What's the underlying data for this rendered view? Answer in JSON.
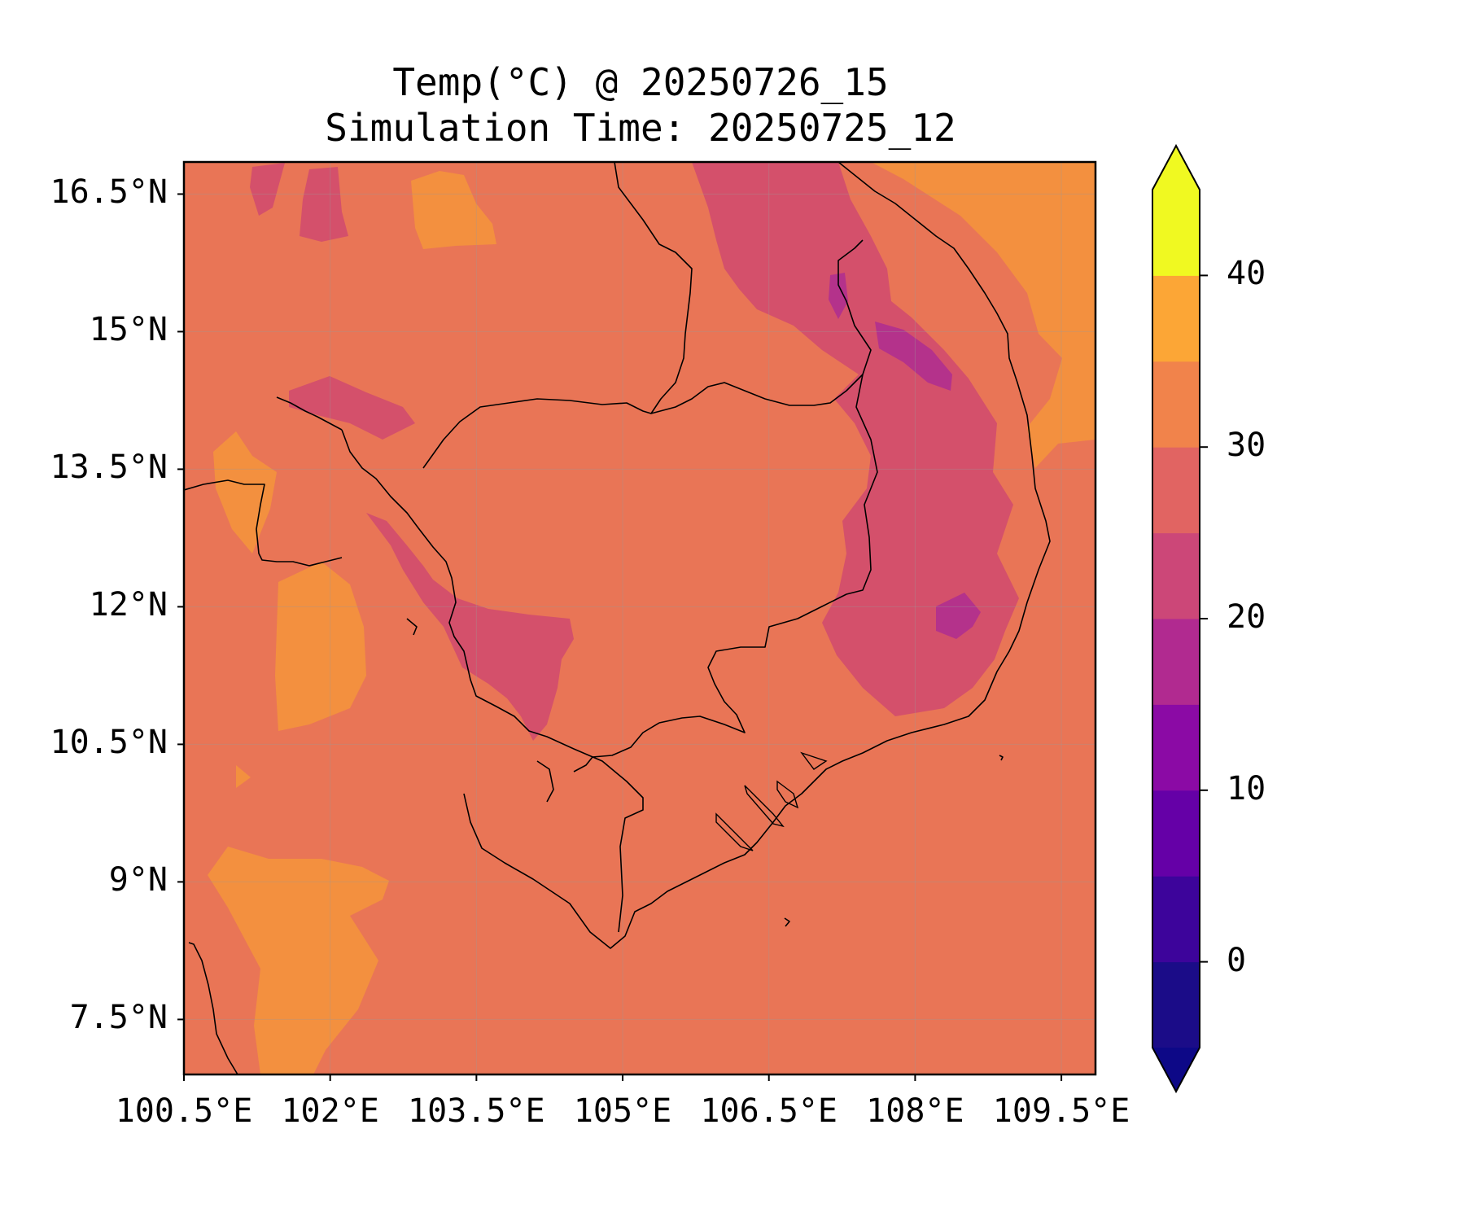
{
  "title": "Temp(°C) @ 20250726_15",
  "subtitle": "Simulation Time: 20250725_12",
  "chart_data": {
    "type": "heatmap",
    "title": "Temp(°C) @ 20250726_15",
    "subtitle": "Simulation Time: 20250725_12",
    "x_range": [
      100.5,
      109.85
    ],
    "y_range": [
      6.9,
      16.85
    ],
    "x_ticks": [
      100.5,
      102.0,
      103.5,
      105.0,
      106.5,
      108.0,
      109.5
    ],
    "x_tick_labels": [
      "100.5°E",
      "102°E",
      "103.5°E",
      "105°E",
      "106.5°E",
      "108°E",
      "109.5°E"
    ],
    "y_ticks": [
      16.5,
      15.0,
      13.5,
      12.0,
      10.5,
      9.0,
      7.5
    ],
    "y_tick_labels": [
      "16.5°N",
      "15°N",
      "13.5°N",
      "12°N",
      "10.5°N",
      "9°N",
      "7.5°N"
    ],
    "grid": true,
    "colorbar": {
      "levels": [
        -5,
        0,
        5,
        10,
        15,
        20,
        25,
        30,
        35,
        40,
        45
      ],
      "colors": [
        "#1b0c88",
        "#3d049b",
        "#6500a7",
        "#8b0aa5",
        "#b12a90",
        "#cc4778",
        "#e16462",
        "#f1834b",
        "#fca636",
        "#f0f921"
      ],
      "under_color": "#0d0887",
      "over_color": "#f0f921",
      "ticks": [
        0,
        10,
        20,
        30,
        40
      ],
      "tick_labels": [
        "0",
        "10",
        "20",
        "30",
        "40"
      ]
    },
    "background_color": "#e97556",
    "warm_color": "#f3903f",
    "cool_color": "#d4506b",
    "cold_color": "#b4328b"
  }
}
